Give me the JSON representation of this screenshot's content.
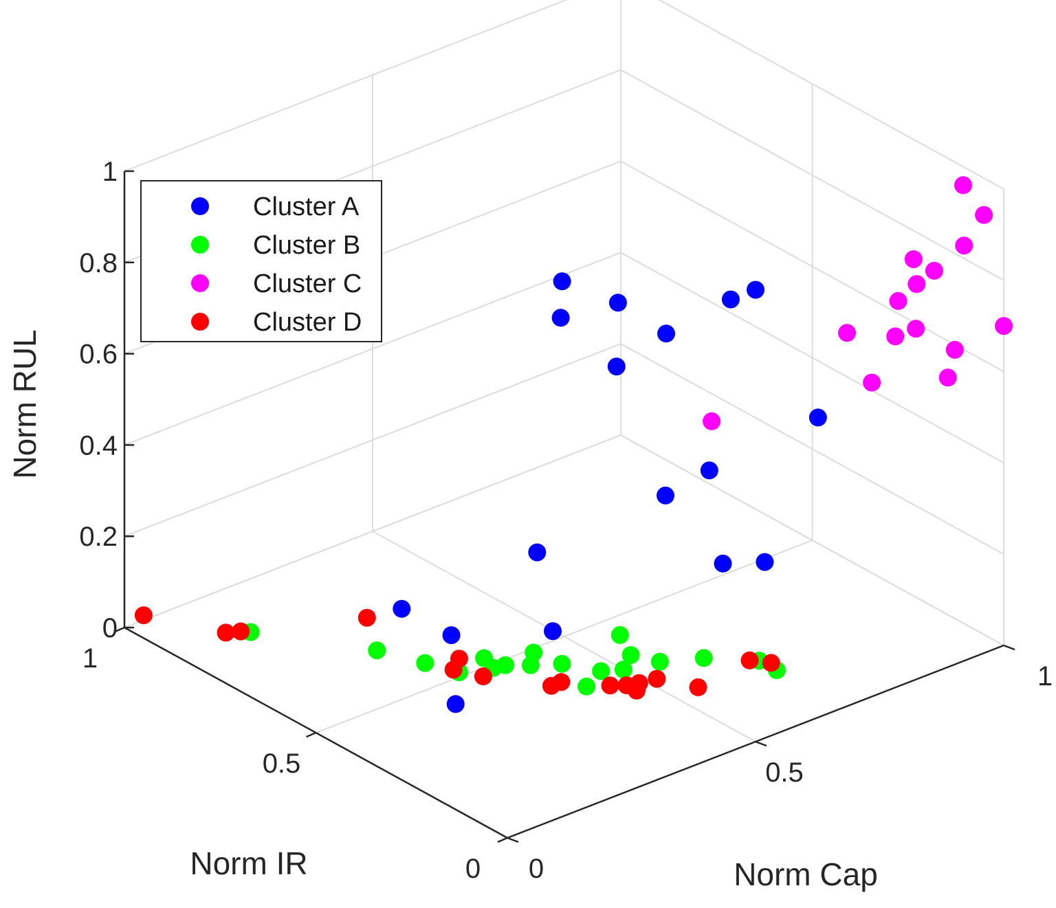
{
  "chart_data": {
    "type": "scatter3d",
    "xlabel": "Norm Cap",
    "ylabel": "Norm IR",
    "zlabel": "Norm RUL",
    "xlim": [
      0,
      1
    ],
    "ylim": [
      0,
      1
    ],
    "zlim": [
      0,
      1
    ],
    "x_ticks": [
      "0",
      "0.5",
      "1"
    ],
    "y_ticks": [
      "0",
      "0.5",
      "1"
    ],
    "z_ticks": [
      "0",
      "0.2",
      "0.4",
      "0.6",
      "0.8",
      "1"
    ],
    "grid": true,
    "legend_position": "top-left",
    "series": [
      {
        "name": "Cluster A",
        "color": "#0000ff",
        "points": [
          {
            "x": 0.5,
            "y": 0.0,
            "z": 0.99
          },
          {
            "x": 0.45,
            "y": 0.0,
            "z": 0.99
          },
          {
            "x": 0.32,
            "y": 0.0,
            "z": 0.97
          },
          {
            "x": 0.22,
            "y": 0.0,
            "z": 0.94
          },
          {
            "x": 0.3,
            "y": 0.1,
            "z": 1.0
          },
          {
            "x": 0.2,
            "y": 0.12,
            "z": 1.0
          },
          {
            "x": 0.28,
            "y": 0.22,
            "z": 1.0
          },
          {
            "x": 0.43,
            "y": 0.03,
            "z": 0.61
          },
          {
            "x": 0.78,
            "y": 0.2,
            "z": 0.5
          },
          {
            "x": 0.55,
            "y": 0.3,
            "z": 0.38
          },
          {
            "x": 0.05,
            "y": 0.2,
            "z": 0.18
          },
          {
            "x": 0.55,
            "y": 0.15,
            "z": 0.3
          },
          {
            "x": 0.75,
            "y": 0.3,
            "z": 0.15
          },
          {
            "x": 0.4,
            "y": 0.4,
            "z": 0.1
          },
          {
            "x": 0.25,
            "y": 0.6,
            "z": 0.12
          },
          {
            "x": 0.6,
            "y": 0.7,
            "z": 0.05
          },
          {
            "x": 0.35,
            "y": 0.6,
            "z": 0.02
          }
        ]
      },
      {
        "name": "Cluster B",
        "color": "#00ff00",
        "points": [
          {
            "x": 0.1,
            "y": 0.8,
            "z": 0.04
          },
          {
            "x": 0.2,
            "y": 0.6,
            "z": 0.05
          },
          {
            "x": 0.22,
            "y": 0.5,
            "z": 0.06
          },
          {
            "x": 0.25,
            "y": 0.45,
            "z": 0.05
          },
          {
            "x": 0.28,
            "y": 0.4,
            "z": 0.07
          },
          {
            "x": 0.3,
            "y": 0.45,
            "z": 0.06
          },
          {
            "x": 0.32,
            "y": 0.42,
            "z": 0.05
          },
          {
            "x": 0.34,
            "y": 0.38,
            "z": 0.06
          },
          {
            "x": 0.38,
            "y": 0.35,
            "z": 0.06
          },
          {
            "x": 0.42,
            "y": 0.3,
            "z": 0.05
          },
          {
            "x": 0.45,
            "y": 0.28,
            "z": 0.05
          },
          {
            "x": 0.48,
            "y": 0.3,
            "z": 0.06
          },
          {
            "x": 0.5,
            "y": 0.25,
            "z": 0.06
          },
          {
            "x": 0.36,
            "y": 0.26,
            "z": 0.06
          },
          {
            "x": 0.4,
            "y": 0.45,
            "z": 0.03
          },
          {
            "x": 0.55,
            "y": 0.2,
            "z": 0.07
          },
          {
            "x": 0.62,
            "y": 0.1,
            "z": 0.06
          },
          {
            "x": 0.6,
            "y": 0.12,
            "z": 0.08
          },
          {
            "x": 0.52,
            "y": 0.38,
            "z": 0.05
          }
        ]
      },
      {
        "name": "Cluster C",
        "color": "#ff00ff",
        "points": [
          {
            "x": 0.98,
            "y": 0.08,
            "z": 0.98
          },
          {
            "x": 0.96,
            "y": 0.0,
            "z": 0.96
          },
          {
            "x": 0.92,
            "y": 0.0,
            "z": 0.91
          },
          {
            "x": 0.86,
            "y": 0.0,
            "z": 0.88
          },
          {
            "x": 0.88,
            "y": 0.08,
            "z": 0.86
          },
          {
            "x": 0.84,
            "y": 0.02,
            "z": 0.85
          },
          {
            "x": 0.88,
            "y": 0.12,
            "z": 0.75
          },
          {
            "x": 0.82,
            "y": 0.05,
            "z": 0.73
          },
          {
            "x": 0.8,
            "y": 0.15,
            "z": 0.7
          },
          {
            "x": 0.9,
            "y": 0.1,
            "z": 0.69
          },
          {
            "x": 1.0,
            "y": 0.0,
            "z": 0.7
          },
          {
            "x": 0.94,
            "y": 0.05,
            "z": 0.65
          },
          {
            "x": 0.98,
            "y": 0.12,
            "z": 0.54
          },
          {
            "x": 0.85,
            "y": 0.15,
            "z": 0.57
          },
          {
            "x": 0.45,
            "y": 0.05,
            "z": 0.7
          }
        ]
      },
      {
        "name": "Cluster D",
        "color": "#ff0000",
        "points": [
          {
            "x": 0.0,
            "y": 0.95,
            "z": 0.05
          },
          {
            "x": 0.05,
            "y": 0.8,
            "z": 0.06
          },
          {
            "x": 0.08,
            "y": 0.8,
            "z": 0.05
          },
          {
            "x": 0.2,
            "y": 0.4,
            "z": 0.1
          },
          {
            "x": 0.25,
            "y": 0.45,
            "z": 0.08
          },
          {
            "x": 0.26,
            "y": 0.4,
            "z": 0.06
          },
          {
            "x": 0.32,
            "y": 0.3,
            "z": 0.06
          },
          {
            "x": 0.34,
            "y": 0.3,
            "z": 0.06
          },
          {
            "x": 0.4,
            "y": 0.25,
            "z": 0.05
          },
          {
            "x": 0.41,
            "y": 0.22,
            "z": 0.06
          },
          {
            "x": 0.42,
            "y": 0.2,
            "z": 0.07
          },
          {
            "x": 0.43,
            "y": 0.22,
            "z": 0.04
          },
          {
            "x": 0.44,
            "y": 0.18,
            "z": 0.08
          },
          {
            "x": 0.5,
            "y": 0.15,
            "z": 0.05
          },
          {
            "x": 0.55,
            "y": 0.08,
            "z": 0.12
          },
          {
            "x": 0.57,
            "y": 0.05,
            "z": 0.12
          },
          {
            "x": 0.18,
            "y": 0.6,
            "z": 0.13
          }
        ]
      }
    ]
  }
}
